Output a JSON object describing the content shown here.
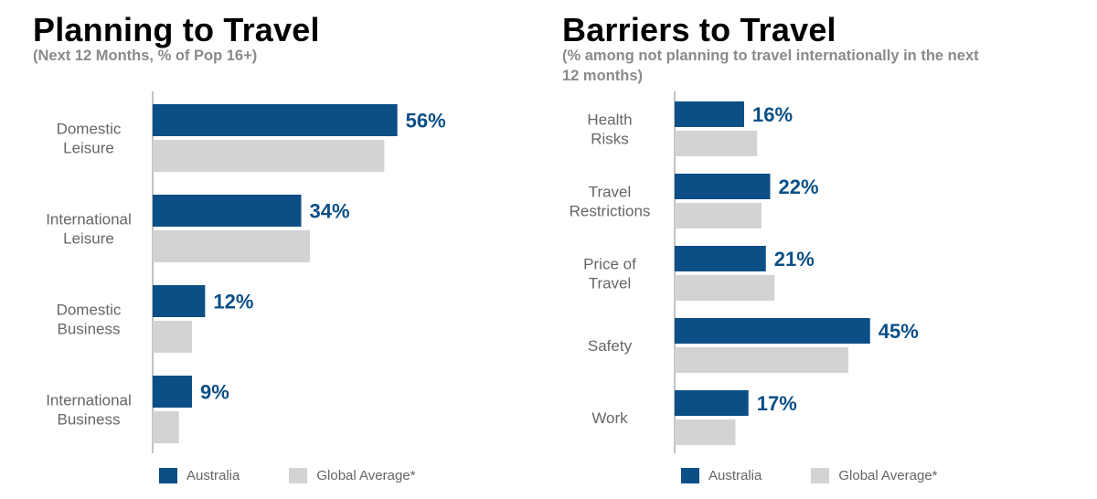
{
  "colors": {
    "australia": "#0b4f86",
    "global": "#d3d3d5",
    "axis": "#9a9a9a"
  },
  "legend": {
    "series1": "Australia",
    "series2": "Global Average*"
  },
  "chart_data": [
    {
      "type": "bar",
      "orientation": "horizontal",
      "title": "Planning to Travel",
      "subtitle": "(Next 12 Months, % of Pop 16+)",
      "categories": [
        [
          "Domestic",
          "Leisure"
        ],
        [
          "International",
          "Leisure"
        ],
        [
          "Domestic",
          "Business"
        ],
        [
          "International",
          "Business"
        ]
      ],
      "series": [
        {
          "name": "Australia",
          "values": [
            56,
            34,
            12,
            9
          ],
          "labels": [
            "56%",
            "34%",
            "12%",
            "9%"
          ]
        },
        {
          "name": "Global Average*",
          "values": [
            53,
            36,
            9,
            6
          ]
        }
      ],
      "xlim": [
        0,
        100
      ],
      "grid": false,
      "legend_position": "bottom"
    },
    {
      "type": "bar",
      "orientation": "horizontal",
      "title": "Barriers to Travel",
      "subtitle": "(% among not planning to travel internationally in the next 12 months)",
      "categories": [
        [
          "Health",
          "Risks"
        ],
        [
          "Travel",
          "Restrictions"
        ],
        [
          "Price of",
          "Travel"
        ],
        [
          "Safety"
        ],
        [
          "Work"
        ]
      ],
      "series": [
        {
          "name": "Australia",
          "values": [
            16,
            22,
            21,
            45,
            17
          ],
          "labels": [
            "16%",
            "22%",
            "21%",
            "45%",
            "17%"
          ]
        },
        {
          "name": "Global Average*",
          "values": [
            19,
            20,
            23,
            40,
            14
          ]
        }
      ],
      "xlim": [
        0,
        100
      ],
      "grid": false,
      "legend_position": "bottom"
    }
  ]
}
